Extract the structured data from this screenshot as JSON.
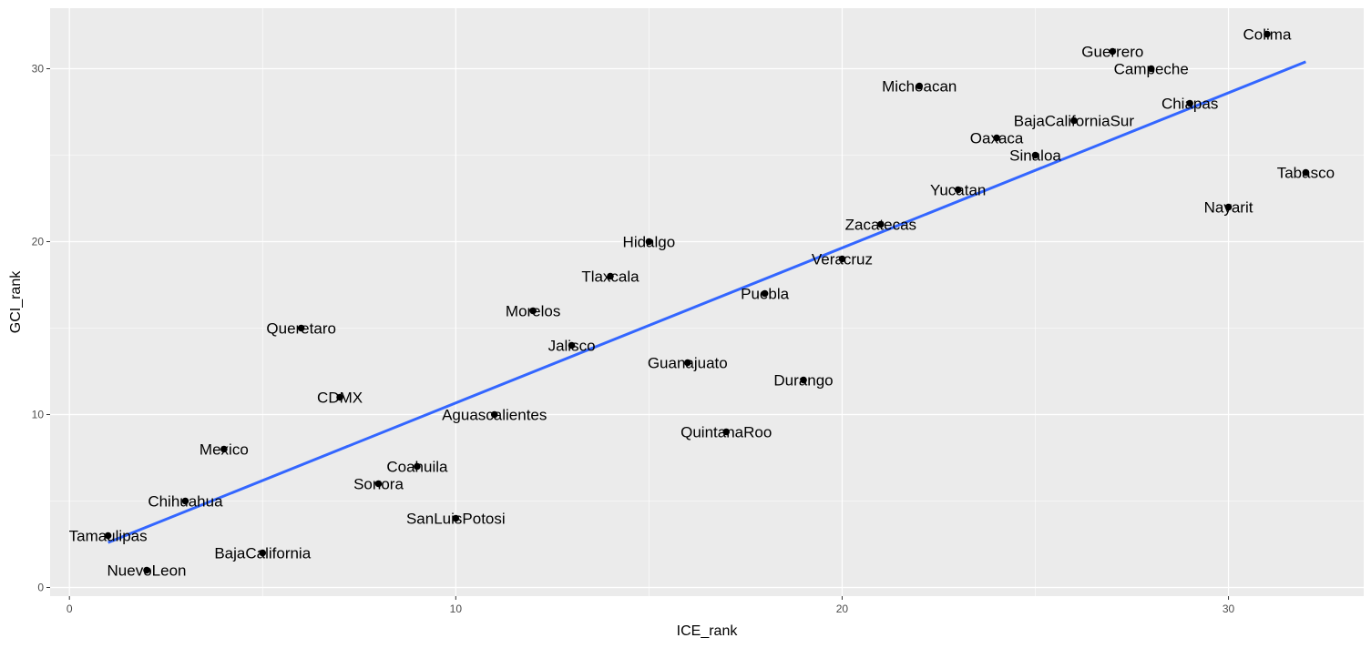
{
  "chart_data": {
    "type": "scatter",
    "xlabel": "ICE_rank",
    "ylabel": "GCI_rank",
    "xlim": [
      -0.5,
      33.5
    ],
    "ylim": [
      -0.5,
      33.5
    ],
    "x_ticks": [
      0,
      10,
      20,
      30
    ],
    "y_ticks": [
      0,
      10,
      20,
      30
    ],
    "grid": true,
    "colors": {
      "panel": "#ebebeb",
      "grid": "#ffffff",
      "point": "#000000",
      "trend": "#3366ff"
    },
    "trend_line": {
      "x": [
        1,
        32
      ],
      "y": [
        2.6,
        30.4
      ]
    },
    "points": [
      {
        "label": "Tamaulipas",
        "x": 1,
        "y": 3
      },
      {
        "label": "NuevoLeon",
        "x": 2,
        "y": 1
      },
      {
        "label": "Chihuahua",
        "x": 3,
        "y": 5
      },
      {
        "label": "Mexico",
        "x": 4,
        "y": 8
      },
      {
        "label": "BajaCalifornia",
        "x": 5,
        "y": 2
      },
      {
        "label": "Queretaro",
        "x": 6,
        "y": 15
      },
      {
        "label": "CDMX",
        "x": 7,
        "y": 11
      },
      {
        "label": "Sonora",
        "x": 8,
        "y": 6
      },
      {
        "label": "Coahuila",
        "x": 9,
        "y": 7
      },
      {
        "label": "SanLuisPotosi",
        "x": 10,
        "y": 4
      },
      {
        "label": "Aguascalientes",
        "x": 11,
        "y": 10
      },
      {
        "label": "Morelos",
        "x": 12,
        "y": 16
      },
      {
        "label": "Jalisco",
        "x": 13,
        "y": 14
      },
      {
        "label": "Tlaxcala",
        "x": 14,
        "y": 18
      },
      {
        "label": "Hidalgo",
        "x": 15,
        "y": 20
      },
      {
        "label": "Guanajuato",
        "x": 16,
        "y": 13
      },
      {
        "label": "QuintanaRoo",
        "x": 17,
        "y": 9
      },
      {
        "label": "Puebla",
        "x": 18,
        "y": 17
      },
      {
        "label": "Durango",
        "x": 19,
        "y": 12
      },
      {
        "label": "Veracruz",
        "x": 20,
        "y": 19
      },
      {
        "label": "Zacatecas",
        "x": 21,
        "y": 21
      },
      {
        "label": "Michoacan",
        "x": 22,
        "y": 29
      },
      {
        "label": "Yucatan",
        "x": 23,
        "y": 23
      },
      {
        "label": "Oaxaca",
        "x": 24,
        "y": 26
      },
      {
        "label": "Sinaloa",
        "x": 25,
        "y": 25
      },
      {
        "label": "BajaCaliforniaSur",
        "x": 26,
        "y": 27
      },
      {
        "label": "Guerrero",
        "x": 27,
        "y": 31
      },
      {
        "label": "Campeche",
        "x": 28,
        "y": 30
      },
      {
        "label": "Chiapas",
        "x": 29,
        "y": 28
      },
      {
        "label": "Nayarit",
        "x": 30,
        "y": 22
      },
      {
        "label": "Colima",
        "x": 31,
        "y": 32
      },
      {
        "label": "Tabasco",
        "x": 32,
        "y": 24
      }
    ]
  }
}
